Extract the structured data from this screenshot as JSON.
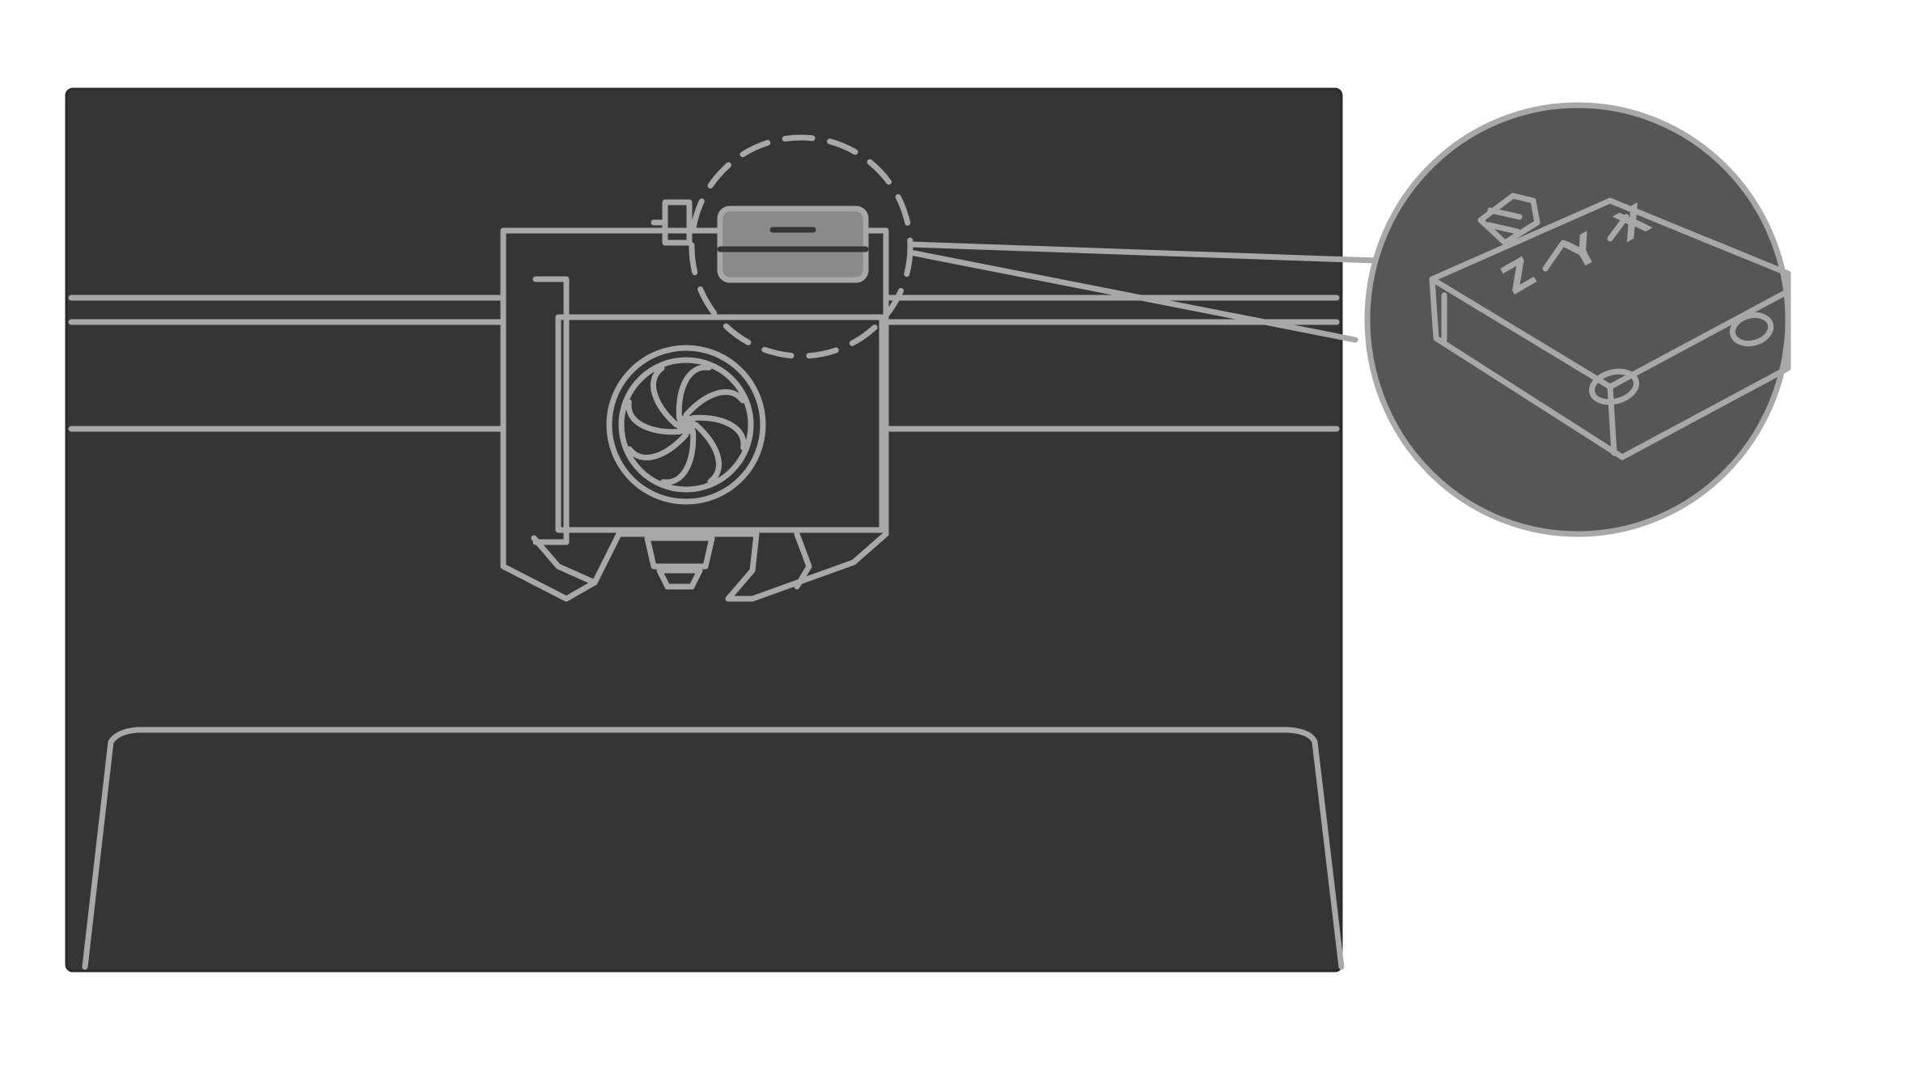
{
  "colors": {
    "page_background": "#ffffff",
    "screen_background": "#353535",
    "line_art": "#a8a8a8",
    "mount_fill": "#8a8a8a",
    "zoom_circle_fill": "#565656"
  },
  "icons": {
    "printhead": "printhead-icon",
    "cooling_fan": "fan-icon",
    "sensor_module": "sensor-module-icon",
    "print_bed": "print-bed-icon"
  },
  "zoom_detail": {
    "axis_labels": [
      "Z",
      "Y",
      "X"
    ]
  }
}
